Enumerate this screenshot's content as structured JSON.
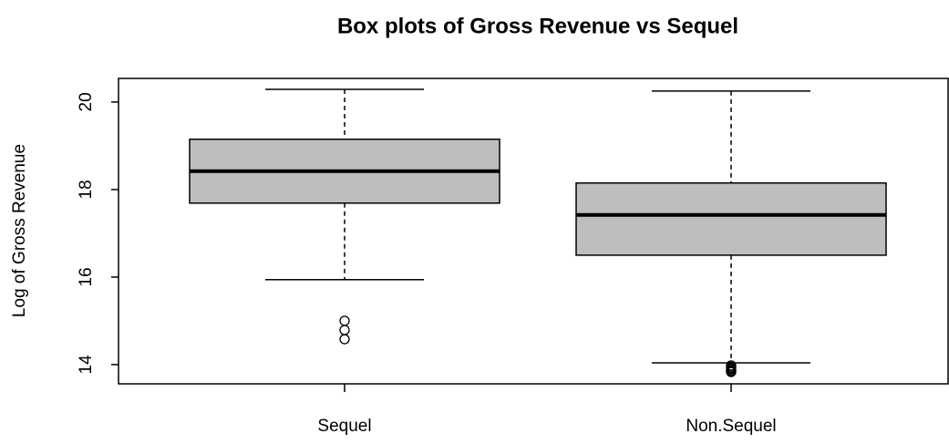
{
  "chart_data": {
    "type": "box",
    "title": "Box plots of Gross Revenue vs Sequel",
    "y_label": "Log of Gross Revenue",
    "categories": [
      "Sequel",
      "Non.Sequel"
    ],
    "boxes": [
      {
        "whisker_low": 15.94,
        "q1": 17.69,
        "median": 18.42,
        "q3": 19.15,
        "whisker_high": 20.29,
        "outliers": [
          15.0,
          14.79,
          14.58
        ]
      },
      {
        "whisker_low": 14.04,
        "q1": 16.5,
        "median": 17.42,
        "q3": 18.15,
        "whisker_high": 20.25,
        "outliers": [
          13.98,
          13.95,
          13.92,
          13.9,
          13.87,
          13.85,
          13.83
        ]
      }
    ],
    "color": "#bebebe",
    "ylim": [
      13.56,
      20.54
    ],
    "yticks": [
      14,
      16,
      18,
      20
    ]
  }
}
